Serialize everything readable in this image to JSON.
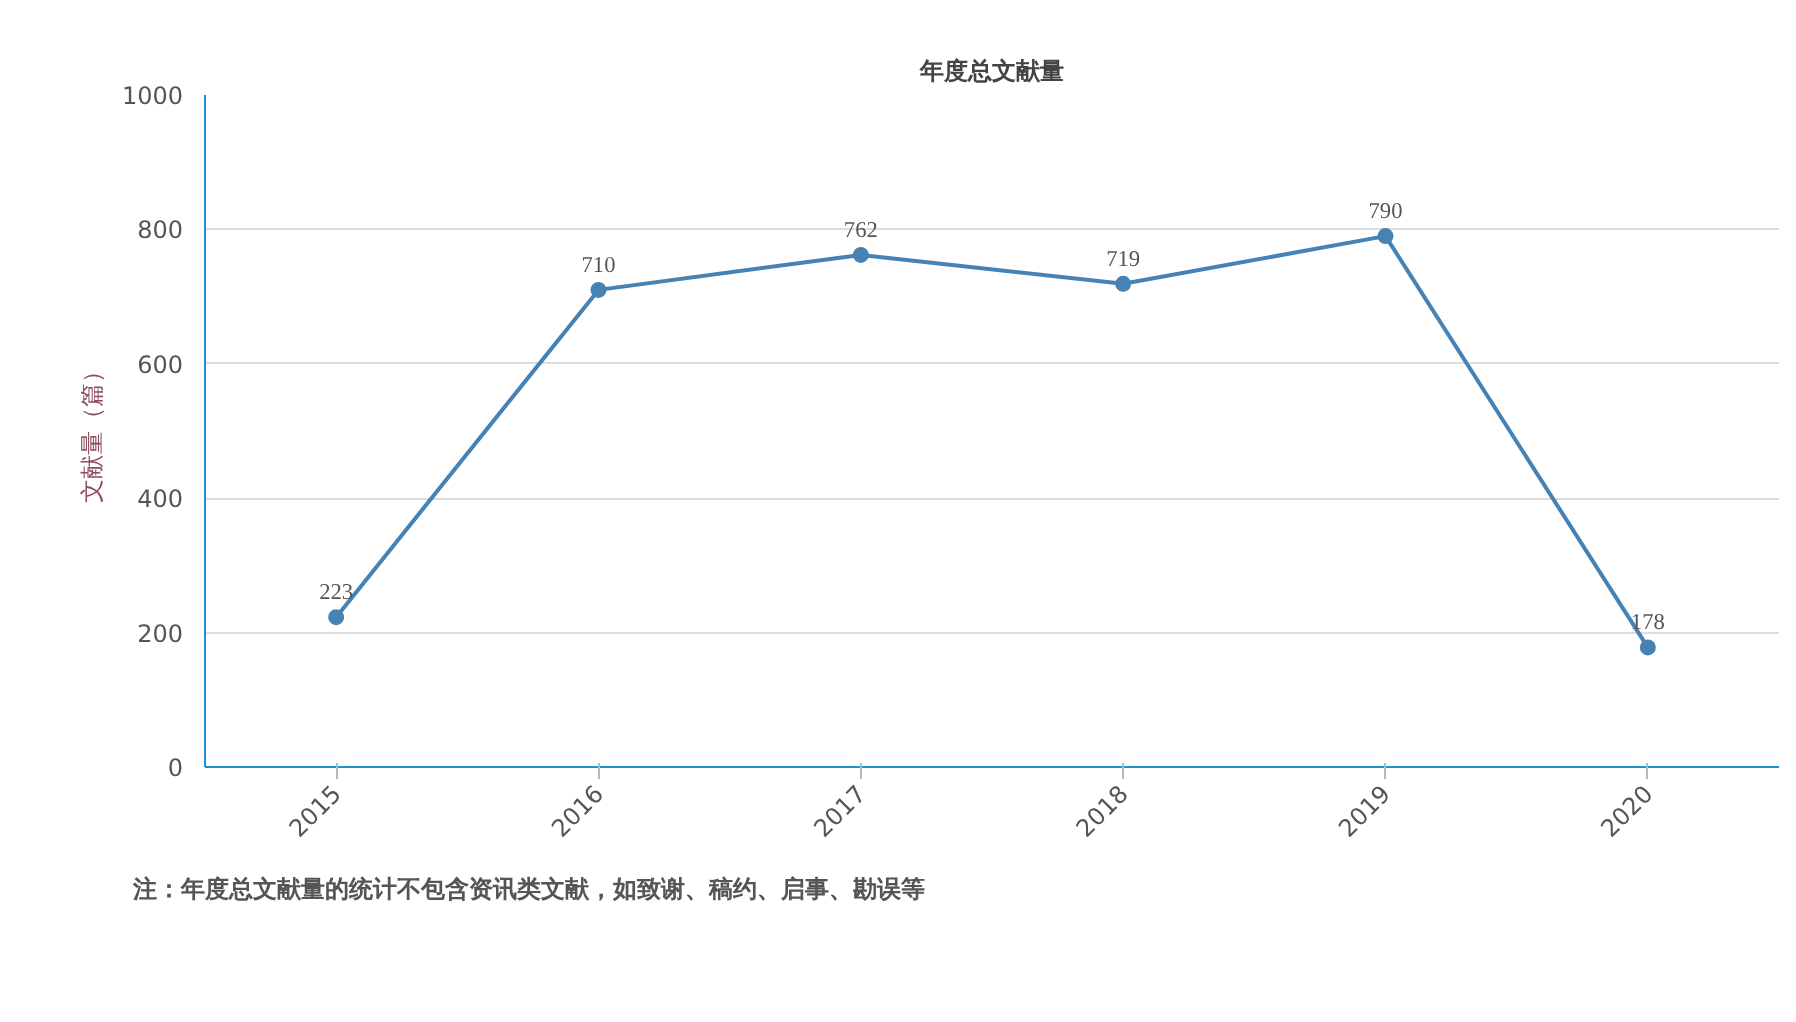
{
  "chart_data": {
    "type": "line",
    "title": "年度总文献量",
    "ylabel": "文献量（篇）",
    "categories": [
      "2015",
      "2016",
      "2017",
      "2018",
      "2019",
      "2020"
    ],
    "series": [
      {
        "color": "#4682b4",
        "values": [
          223,
          710,
          762,
          719,
          790,
          178
        ]
      }
    ],
    "ylim": [
      0,
      1000
    ],
    "yticks": [
      0,
      200,
      400,
      600,
      800,
      1000
    ],
    "grid": "y",
    "marker": "circle",
    "data_labels": true,
    "annotations": [
      "注：年度总文献量的统计不包含资讯类文献，如致谢、稿约、启事、勘误等"
    ]
  }
}
